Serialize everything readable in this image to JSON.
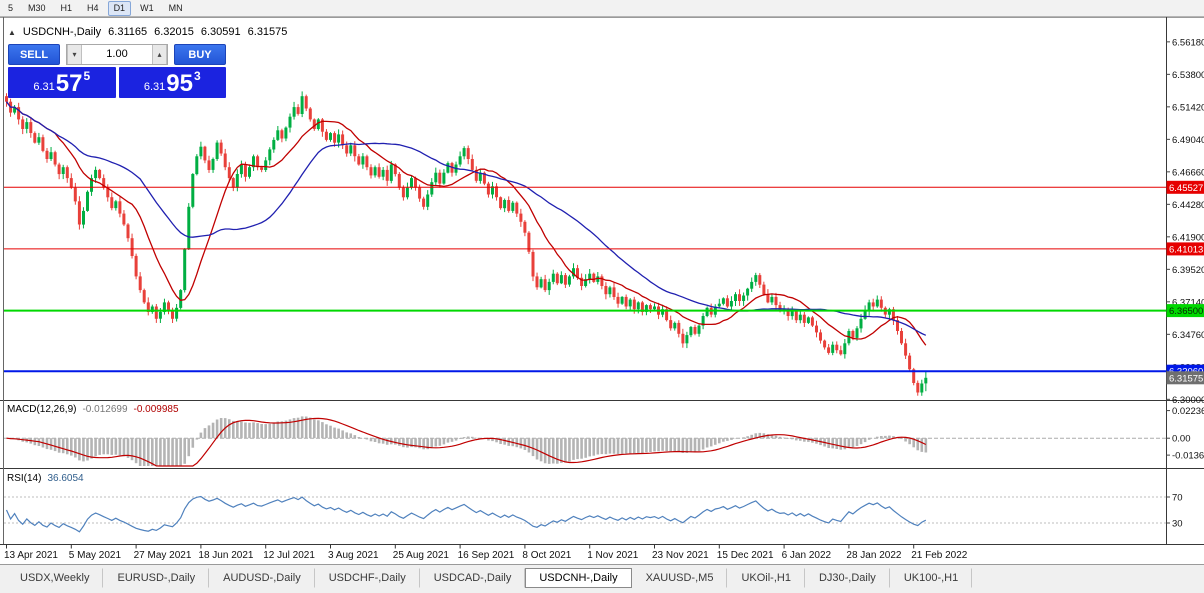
{
  "toolbar": {
    "timeframes": [
      "5",
      "M30",
      "H1",
      "H4",
      "D1",
      "W1",
      "MN"
    ],
    "active": "D1"
  },
  "chart": {
    "collapse_icon": "▲",
    "symbol_title": "USDCNH-,Daily",
    "ohlc": {
      "open": "6.31165",
      "high": "6.32015",
      "low": "6.30591",
      "close": "6.31575"
    },
    "trade_panel": {
      "sell_label": "SELL",
      "buy_label": "BUY",
      "volume": "1.00",
      "spin_up_icon": "▴",
      "spin_down_icon": "▾",
      "bid": {
        "prefix": "6.31",
        "big": "57",
        "sup": "5"
      },
      "ask": {
        "prefix": "6.31",
        "big": "95",
        "sup": "3"
      },
      "price_box_color": "#1B23E0"
    }
  },
  "chart_data": {
    "type": "candlestick",
    "symbol": "USDCNH-",
    "timeframe": "Daily",
    "last_ohlc": {
      "o": 6.31165,
      "h": 6.32015,
      "l": 6.30591,
      "c": 6.31575
    },
    "price_axis": {
      "labels": [
        "6.56180",
        "6.53800",
        "6.51420",
        "6.49040",
        "6.46660",
        "6.44280",
        "6.41900",
        "6.39520",
        "6.37140",
        "6.34760",
        "6.32380",
        "6.30000"
      ],
      "min": 6.2995,
      "max": 6.58
    },
    "x_labels": [
      "13 Apr 2021",
      "5 May 2021",
      "27 May 2021",
      "18 Jun 2021",
      "12 Jul 2021",
      "3 Aug 2021",
      "25 Aug 2021",
      "16 Sep 2021",
      "8 Oct 2021",
      "1 Nov 2021",
      "23 Nov 2021",
      "15 Dec 2021",
      "6 Jan 2022",
      "28 Jan 2022",
      "21 Feb 2022"
    ],
    "closes": [
      6.518,
      6.51,
      6.514,
      6.505,
      6.498,
      6.503,
      6.495,
      6.488,
      6.492,
      6.482,
      6.476,
      6.481,
      6.472,
      6.465,
      6.47,
      6.462,
      6.455,
      6.445,
      6.428,
      6.438,
      6.452,
      6.462,
      6.468,
      6.462,
      6.455,
      6.448,
      6.44,
      6.445,
      6.436,
      6.428,
      6.418,
      6.405,
      6.39,
      6.38,
      6.371,
      6.364,
      6.368,
      6.359,
      6.364,
      6.371,
      6.365,
      6.359,
      6.367,
      6.38,
      6.41,
      6.441,
      6.465,
      6.478,
      6.485,
      6.475,
      6.468,
      6.476,
      6.488,
      6.48,
      6.47,
      6.462,
      6.455,
      6.465,
      6.472,
      6.463,
      6.47,
      6.478,
      6.47,
      6.468,
      6.475,
      6.483,
      6.49,
      6.497,
      6.491,
      6.499,
      6.507,
      6.514,
      6.509,
      6.522,
      6.513,
      6.505,
      6.498,
      6.505,
      6.496,
      6.49,
      6.495,
      6.488,
      6.494,
      6.486,
      6.48,
      6.486,
      6.478,
      6.472,
      6.478,
      6.47,
      6.464,
      6.47,
      6.463,
      6.468,
      6.46,
      6.472,
      6.465,
      6.455,
      6.448,
      6.455,
      6.462,
      6.455,
      6.447,
      6.441,
      6.45,
      6.459,
      6.466,
      6.458,
      6.466,
      6.473,
      6.466,
      6.472,
      6.478,
      6.484,
      6.476,
      6.468,
      6.46,
      6.466,
      6.458,
      6.45,
      6.456,
      6.448,
      6.44,
      6.446,
      6.438,
      6.444,
      6.436,
      6.43,
      6.422,
      6.408,
      6.39,
      6.382,
      6.388,
      6.38,
      6.386,
      6.392,
      6.385,
      6.391,
      6.384,
      6.39,
      6.396,
      6.389,
      6.383,
      6.388,
      6.392,
      6.386,
      6.39,
      6.383,
      6.377,
      6.382,
      6.375,
      6.37,
      6.375,
      6.368,
      6.373,
      6.366,
      6.371,
      6.364,
      6.369,
      6.366,
      6.368,
      6.362,
      6.366,
      6.358,
      6.352,
      6.356,
      6.348,
      6.341,
      6.347,
      6.353,
      6.348,
      6.354,
      6.361,
      6.367,
      6.362,
      6.368,
      6.37,
      6.374,
      6.368,
      6.372,
      6.377,
      6.372,
      6.376,
      6.381,
      6.386,
      6.391,
      6.384,
      6.377,
      6.371,
      6.375,
      6.369,
      6.365,
      6.366,
      6.361,
      6.365,
      6.358,
      6.362,
      6.356,
      6.36,
      6.354,
      6.349,
      6.343,
      6.338,
      6.334,
      6.34,
      6.336,
      6.333,
      6.341,
      6.35,
      6.345,
      6.352,
      6.359,
      6.365,
      6.371,
      6.368,
      6.373,
      6.367,
      6.362,
      6.366,
      6.358,
      6.35,
      6.341,
      6.332,
      6.322,
      6.312,
      6.305,
      6.3116,
      6.31575
    ],
    "up_color": "#00AE42",
    "down_color": "#E8403A",
    "moving_averages": [
      {
        "period": 13,
        "color": "#C00000"
      },
      {
        "period": 34,
        "color": "#2020B0"
      }
    ],
    "levels": [
      {
        "price": 6.45527,
        "label": "6.45527",
        "color": "#E60000",
        "text": "#FFFFFF",
        "lw": 1
      },
      {
        "price": 6.41013,
        "label": "6.41013",
        "color": "#E60000",
        "text": "#FFFFFF",
        "lw": 1
      },
      {
        "price": 6.365,
        "label": "6.36500",
        "color": "#00D800",
        "text": "#062B06",
        "lw": 2
      },
      {
        "price": 6.3206,
        "label": "6.32060",
        "color": "#0018E8",
        "text": "#FFFFFF",
        "lw": 2
      }
    ],
    "bid_tag": {
      "price": 6.31575,
      "label": "6.31575",
      "color": "#6F6F6F",
      "text": "#FFFFFF"
    },
    "macd": {
      "label": "MACD(12,26,9)",
      "value_main": "-0.012699",
      "value_signal": "-0.009985",
      "fast": 12,
      "slow": 26,
      "signal": 9,
      "axis_labels": [
        {
          "t": "0.02236",
          "v": 0.02236
        },
        {
          "t": "0.00",
          "v": 0
        },
        {
          "t": "-0.01369",
          "v": -0.01369
        }
      ],
      "scale": {
        "min": -0.0225,
        "max": 0.0285
      },
      "hist_color": "#B4B4B4",
      "signal_color": "#C00000"
    },
    "rsi": {
      "label": "RSI(14)",
      "value": "36.6054",
      "period": 14,
      "color": "#4F81BD",
      "levels": [
        {
          "t": "70",
          "v": 70
        },
        {
          "t": "30",
          "v": 30
        }
      ]
    }
  },
  "tabs": {
    "items": [
      "USDX,Weekly",
      "EURUSD-,Daily",
      "AUDUSD-,Daily",
      "USDCHF-,Daily",
      "USDCAD-,Daily",
      "USDCNH-,Daily",
      "XAUUSD-,M5",
      "UKOil-,H1",
      "DJ30-,Daily",
      "UK100-,H1"
    ],
    "active_index": 5
  }
}
